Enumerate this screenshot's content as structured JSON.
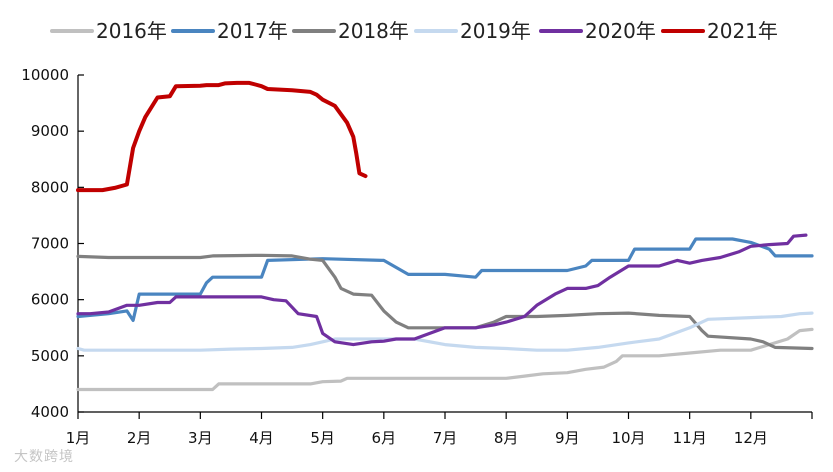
{
  "chart_data": {
    "type": "line",
    "title": "",
    "xlabel": "",
    "ylabel": "",
    "ylim": [
      4000,
      10000
    ],
    "yticks": [
      4000,
      5000,
      6000,
      7000,
      8000,
      9000,
      10000
    ],
    "xlim": [
      1,
      13
    ],
    "x_tick_labels": [
      "1月",
      "2月",
      "3月",
      "4月",
      "5月",
      "6月",
      "7月",
      "8月",
      "9月",
      "10月",
      "11月",
      "12月"
    ],
    "legend_position": "top",
    "grid": false,
    "series": [
      {
        "name": "2016年",
        "color": "#c0c0c0",
        "points": [
          [
            1.0,
            4400
          ],
          [
            3.2,
            4400
          ],
          [
            3.3,
            4500
          ],
          [
            4.0,
            4500
          ],
          [
            4.8,
            4500
          ],
          [
            5.0,
            4540
          ],
          [
            5.3,
            4550
          ],
          [
            5.4,
            4600
          ],
          [
            6.0,
            4600
          ],
          [
            7.0,
            4600
          ],
          [
            8.0,
            4600
          ],
          [
            8.3,
            4640
          ],
          [
            8.6,
            4680
          ],
          [
            9.0,
            4700
          ],
          [
            9.3,
            4760
          ],
          [
            9.6,
            4800
          ],
          [
            9.8,
            4900
          ],
          [
            9.9,
            5000
          ],
          [
            10.5,
            5000
          ],
          [
            11.0,
            5050
          ],
          [
            11.5,
            5100
          ],
          [
            12.0,
            5100
          ],
          [
            12.3,
            5200
          ],
          [
            12.6,
            5300
          ],
          [
            12.8,
            5450
          ],
          [
            13.0,
            5470
          ]
        ]
      },
      {
        "name": "2017年",
        "color": "#4a85c0",
        "points": [
          [
            1.0,
            5700
          ],
          [
            1.5,
            5750
          ],
          [
            1.8,
            5800
          ],
          [
            1.9,
            5630
          ],
          [
            2.0,
            6100
          ],
          [
            3.0,
            6100
          ],
          [
            3.1,
            6300
          ],
          [
            3.2,
            6400
          ],
          [
            4.0,
            6400
          ],
          [
            4.1,
            6700
          ],
          [
            5.0,
            6730
          ],
          [
            6.0,
            6700
          ],
          [
            6.4,
            6450
          ],
          [
            7.0,
            6450
          ],
          [
            7.5,
            6400
          ],
          [
            7.6,
            6520
          ],
          [
            8.0,
            6520
          ],
          [
            9.0,
            6520
          ],
          [
            9.3,
            6600
          ],
          [
            9.4,
            6700
          ],
          [
            10.0,
            6700
          ],
          [
            10.1,
            6900
          ],
          [
            11.0,
            6900
          ],
          [
            11.1,
            7080
          ],
          [
            11.7,
            7080
          ],
          [
            12.0,
            7020
          ],
          [
            12.3,
            6900
          ],
          [
            12.4,
            6780
          ],
          [
            13.0,
            6780
          ]
        ]
      },
      {
        "name": "2018年",
        "color": "#808080",
        "points": [
          [
            1.0,
            6770
          ],
          [
            1.5,
            6750
          ],
          [
            2.0,
            6750
          ],
          [
            3.0,
            6750
          ],
          [
            3.2,
            6780
          ],
          [
            4.0,
            6790
          ],
          [
            4.5,
            6780
          ],
          [
            4.8,
            6720
          ],
          [
            5.0,
            6700
          ],
          [
            5.2,
            6400
          ],
          [
            5.3,
            6200
          ],
          [
            5.5,
            6100
          ],
          [
            5.8,
            6080
          ],
          [
            6.0,
            5800
          ],
          [
            6.2,
            5600
          ],
          [
            6.4,
            5500
          ],
          [
            7.0,
            5500
          ],
          [
            7.5,
            5500
          ],
          [
            7.8,
            5600
          ],
          [
            8.0,
            5700
          ],
          [
            8.5,
            5700
          ],
          [
            9.0,
            5720
          ],
          [
            9.5,
            5750
          ],
          [
            10.0,
            5760
          ],
          [
            10.5,
            5720
          ],
          [
            11.0,
            5700
          ],
          [
            11.2,
            5450
          ],
          [
            11.3,
            5350
          ],
          [
            12.0,
            5300
          ],
          [
            12.2,
            5250
          ],
          [
            12.4,
            5150
          ],
          [
            13.0,
            5130
          ]
        ]
      },
      {
        "name": "2019年",
        "color": "#c5d9ef",
        "points": [
          [
            1.0,
            5130
          ],
          [
            1.1,
            5100
          ],
          [
            2.0,
            5100
          ],
          [
            3.0,
            5100
          ],
          [
            3.5,
            5120
          ],
          [
            4.0,
            5130
          ],
          [
            4.5,
            5150
          ],
          [
            4.8,
            5200
          ],
          [
            5.0,
            5250
          ],
          [
            5.2,
            5300
          ],
          [
            6.0,
            5300
          ],
          [
            6.5,
            5300
          ],
          [
            7.0,
            5200
          ],
          [
            7.5,
            5150
          ],
          [
            8.0,
            5130
          ],
          [
            8.5,
            5100
          ],
          [
            9.0,
            5100
          ],
          [
            9.5,
            5150
          ],
          [
            10.0,
            5230
          ],
          [
            10.5,
            5300
          ],
          [
            11.0,
            5500
          ],
          [
            11.3,
            5650
          ],
          [
            12.0,
            5680
          ],
          [
            12.5,
            5700
          ],
          [
            12.8,
            5750
          ],
          [
            13.0,
            5760
          ]
        ]
      },
      {
        "name": "2020年",
        "color": "#7030a0",
        "points": [
          [
            1.0,
            5750
          ],
          [
            1.2,
            5750
          ],
          [
            1.5,
            5780
          ],
          [
            1.8,
            5900
          ],
          [
            2.0,
            5900
          ],
          [
            2.3,
            5950
          ],
          [
            2.5,
            5950
          ],
          [
            2.6,
            6050
          ],
          [
            3.0,
            6050
          ],
          [
            3.5,
            6050
          ],
          [
            4.0,
            6050
          ],
          [
            4.2,
            6000
          ],
          [
            4.4,
            5980
          ],
          [
            4.6,
            5750
          ],
          [
            4.9,
            5700
          ],
          [
            5.0,
            5400
          ],
          [
            5.2,
            5250
          ],
          [
            5.5,
            5200
          ],
          [
            5.8,
            5250
          ],
          [
            6.0,
            5260
          ],
          [
            6.2,
            5300
          ],
          [
            6.5,
            5300
          ],
          [
            7.0,
            5500
          ],
          [
            7.5,
            5500
          ],
          [
            7.8,
            5550
          ],
          [
            8.0,
            5600
          ],
          [
            8.3,
            5700
          ],
          [
            8.5,
            5900
          ],
          [
            8.8,
            6100
          ],
          [
            9.0,
            6200
          ],
          [
            9.3,
            6200
          ],
          [
            9.5,
            6250
          ],
          [
            9.7,
            6400
          ],
          [
            10.0,
            6600
          ],
          [
            10.5,
            6600
          ],
          [
            10.8,
            6700
          ],
          [
            11.0,
            6650
          ],
          [
            11.2,
            6700
          ],
          [
            11.5,
            6750
          ],
          [
            11.8,
            6850
          ],
          [
            12.0,
            6950
          ],
          [
            12.3,
            6980
          ],
          [
            12.6,
            7000
          ],
          [
            12.7,
            7130
          ],
          [
            12.9,
            7150
          ]
        ]
      },
      {
        "name": "2021年",
        "color": "#c00000",
        "points": [
          [
            1.0,
            7950
          ],
          [
            1.4,
            7950
          ],
          [
            1.6,
            7990
          ],
          [
            1.8,
            8050
          ],
          [
            1.9,
            8700
          ],
          [
            2.0,
            9000
          ],
          [
            2.1,
            9250
          ],
          [
            2.3,
            9600
          ],
          [
            2.5,
            9620
          ],
          [
            2.6,
            9800
          ],
          [
            3.0,
            9810
          ],
          [
            3.1,
            9820
          ],
          [
            3.3,
            9820
          ],
          [
            3.4,
            9850
          ],
          [
            3.6,
            9860
          ],
          [
            3.8,
            9860
          ],
          [
            3.9,
            9830
          ],
          [
            4.0,
            9800
          ],
          [
            4.1,
            9750
          ],
          [
            4.5,
            9730
          ],
          [
            4.8,
            9700
          ],
          [
            4.9,
            9650
          ],
          [
            5.0,
            9560
          ],
          [
            5.2,
            9450
          ],
          [
            5.3,
            9300
          ],
          [
            5.4,
            9150
          ],
          [
            5.5,
            8900
          ],
          [
            5.55,
            8600
          ],
          [
            5.6,
            8250
          ],
          [
            5.7,
            8200
          ]
        ]
      }
    ]
  },
  "watermark": "大数跨境"
}
